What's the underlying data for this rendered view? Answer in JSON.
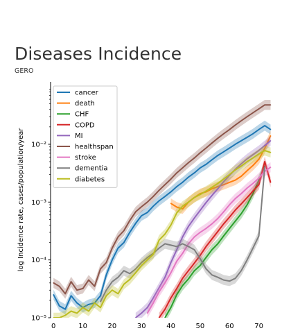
{
  "page": {
    "title": "Diseases Incidence",
    "subtitle": "GERO"
  },
  "chart_data": {
    "type": "line",
    "title": "",
    "xlabel": "",
    "ylabel": "log Incidence rate, cases/population/year",
    "yscale": "log",
    "xlim": [
      -1,
      76
    ],
    "ylim": [
      1e-05,
      0.12
    ],
    "x_ticks": [
      0,
      10,
      20,
      30,
      40,
      50,
      60,
      70
    ],
    "y_ticks": [
      {
        "value": 1e-05,
        "label": "10⁻⁵"
      },
      {
        "value": 0.0001,
        "label": "10⁻⁴"
      },
      {
        "value": 0.001,
        "label": "10⁻³"
      },
      {
        "value": 0.01,
        "label": "10⁻²"
      }
    ],
    "grid": false,
    "legend_position": "top-left",
    "series": [
      {
        "name": "cancer",
        "color": "#1f77b4",
        "x": [
          0,
          2,
          4,
          6,
          8,
          10,
          12,
          14,
          16,
          18,
          20,
          22,
          24,
          26,
          28,
          30,
          32,
          34,
          36,
          38,
          40,
          42,
          44,
          46,
          48,
          50,
          52,
          54,
          56,
          58,
          60,
          62,
          64,
          66,
          68,
          70,
          72,
          74
        ],
        "y": [
          2.5e-05,
          1.6e-05,
          1.4e-05,
          2.4e-05,
          1.8e-05,
          1.5e-05,
          1.7e-05,
          1.8e-05,
          2.4e-05,
          5.5e-05,
          0.0001,
          0.00016,
          0.0002,
          0.0003,
          0.00043,
          0.00058,
          0.00066,
          0.00085,
          0.00105,
          0.00125,
          0.0015,
          0.00185,
          0.0022,
          0.0027,
          0.0032,
          0.0039,
          0.0045,
          0.0054,
          0.0064,
          0.0074,
          0.0086,
          0.01,
          0.0115,
          0.0132,
          0.0152,
          0.018,
          0.021,
          0.018
        ]
      },
      {
        "name": "death",
        "color": "#ff7f0e",
        "x": [
          40,
          42,
          44,
          46,
          48,
          50,
          52,
          54,
          56,
          58,
          60,
          62,
          64,
          66,
          68,
          70,
          72,
          74
        ],
        "y": [
          0.00095,
          0.00082,
          0.00076,
          0.001,
          0.0012,
          0.0014,
          0.0015,
          0.0017,
          0.00185,
          0.002,
          0.0022,
          0.0024,
          0.0028,
          0.0035,
          0.0043,
          0.0055,
          0.0085,
          0.014
        ]
      },
      {
        "name": "CHF",
        "color": "#2ca02c",
        "x": [
          38,
          40,
          42,
          44,
          46,
          48,
          50,
          52,
          54,
          56,
          58,
          60,
          62,
          64,
          66,
          68,
          70,
          72
        ],
        "y": [
          1e-05,
          1.5e-05,
          2.5e-05,
          3.6e-05,
          4.7e-05,
          6.5e-05,
          8e-05,
          0.00011,
          0.00015,
          0.00019,
          0.00026,
          0.00035,
          0.00047,
          0.00063,
          0.0009,
          0.0014,
          0.0024,
          0.0042
        ]
      },
      {
        "name": "COPD",
        "color": "#d62728",
        "x": [
          36,
          38,
          40,
          42,
          44,
          46,
          48,
          50,
          52,
          54,
          56,
          58,
          60,
          62,
          64,
          66,
          68,
          70,
          72,
          74
        ],
        "y": [
          1e-05,
          1.4e-05,
          2.2e-05,
          3.2e-05,
          4.8e-05,
          6.5e-05,
          8.8e-05,
          0.00012,
          0.00017,
          0.00023,
          0.00031,
          0.00042,
          0.00055,
          0.00073,
          0.00093,
          0.0012,
          0.00155,
          0.002,
          0.005,
          0.0022
        ]
      },
      {
        "name": "MI",
        "color": "#9467bd",
        "x": [
          28,
          30,
          32,
          34,
          36,
          38,
          40,
          42,
          44,
          46,
          48,
          50,
          52,
          54,
          56,
          58,
          60,
          62,
          64,
          66,
          68,
          70,
          72,
          74
        ],
        "y": [
          1e-05,
          1.2e-05,
          1.5e-05,
          2.2e-05,
          3.3e-05,
          5e-05,
          9e-05,
          0.00015,
          0.00025,
          0.00038,
          0.00053,
          0.00072,
          0.00098,
          0.0013,
          0.0017,
          0.00225,
          0.0029,
          0.0037,
          0.0046,
          0.0056,
          0.0066,
          0.0078,
          0.0095,
          0.0115
        ]
      },
      {
        "name": "healthspan",
        "color": "#8c564b",
        "x": [
          0,
          2,
          4,
          6,
          8,
          10,
          12,
          14,
          16,
          18,
          20,
          22,
          24,
          26,
          28,
          30,
          32,
          34,
          36,
          38,
          40,
          42,
          44,
          46,
          48,
          50,
          52,
          54,
          56,
          58,
          60,
          62,
          64,
          66,
          68,
          70,
          72,
          74
        ],
        "y": [
          4e-05,
          3.5e-05,
          2.6e-05,
          4.2e-05,
          3e-05,
          3.2e-05,
          4.5e-05,
          3.5e-05,
          7e-05,
          9e-05,
          0.00016,
          0.00025,
          0.00032,
          0.00048,
          0.00068,
          0.00083,
          0.001,
          0.00125,
          0.0016,
          0.002,
          0.0025,
          0.0032,
          0.0039,
          0.0048,
          0.0058,
          0.0071,
          0.0086,
          0.0105,
          0.0127,
          0.0152,
          0.018,
          0.0215,
          0.0255,
          0.03,
          0.035,
          0.041,
          0.048,
          0.048
        ]
      },
      {
        "name": "stroke",
        "color": "#e377c2",
        "x": [
          32,
          34,
          36,
          38,
          40,
          42,
          44,
          46,
          48,
          50,
          52,
          54,
          56,
          58,
          60,
          62,
          64,
          66,
          68,
          70,
          72,
          74
        ],
        "y": [
          1.2e-05,
          1.8e-05,
          2.8e-05,
          4e-05,
          6e-05,
          9.5e-05,
          0.00013,
          0.00019,
          0.00025,
          0.0003,
          0.00035,
          0.00042,
          0.00052,
          0.00068,
          0.0009,
          0.00115,
          0.0014,
          0.00175,
          0.0021,
          0.0026,
          0.0034,
          0.004
        ]
      },
      {
        "name": "dementia",
        "color": "#7f7f7f",
        "x": [
          16,
          18,
          20,
          22,
          24,
          26,
          28,
          30,
          32,
          34,
          36,
          38,
          40,
          42,
          44,
          46,
          48,
          50,
          52,
          54,
          56,
          58,
          60,
          62,
          64,
          66,
          68,
          70,
          72
        ],
        "y": [
          1.9e-05,
          3e-05,
          4.2e-05,
          5e-05,
          6.5e-05,
          5.8e-05,
          7e-05,
          9e-05,
          0.00011,
          0.00013,
          0.00016,
          0.00019,
          0.00018,
          0.00017,
          0.00019,
          0.00017,
          0.00015,
          0.000105,
          7e-05,
          5.5e-05,
          5e-05,
          4.5e-05,
          4.3e-05,
          4.8e-05,
          6.5e-05,
          0.0001,
          0.00016,
          0.00026,
          0.004
        ]
      },
      {
        "name": "diabetes",
        "color": "#bcbd22",
        "x": [
          0,
          2,
          4,
          6,
          8,
          10,
          12,
          14,
          16,
          18,
          20,
          22,
          24,
          26,
          28,
          30,
          32,
          34,
          36,
          38,
          40,
          42,
          44,
          46,
          48,
          50,
          52,
          54,
          56,
          58,
          60,
          62,
          64,
          66,
          68,
          70,
          72,
          74
        ],
        "y": [
          1e-05,
          1e-05,
          1.1e-05,
          1.3e-05,
          1.2e-05,
          1.5e-05,
          1.3e-05,
          1.8e-05,
          1.5e-05,
          2.4e-05,
          3e-05,
          2.6e-05,
          3.8e-05,
          4.6e-05,
          6e-05,
          8e-05,
          0.0001,
          0.000125,
          0.00022,
          0.00028,
          0.0004,
          0.00065,
          0.00085,
          0.001,
          0.0012,
          0.00135,
          0.00155,
          0.0018,
          0.0021,
          0.0025,
          0.003,
          0.0036,
          0.0042,
          0.005,
          0.0058,
          0.0068,
          0.0078,
          0.0072
        ]
      }
    ]
  }
}
